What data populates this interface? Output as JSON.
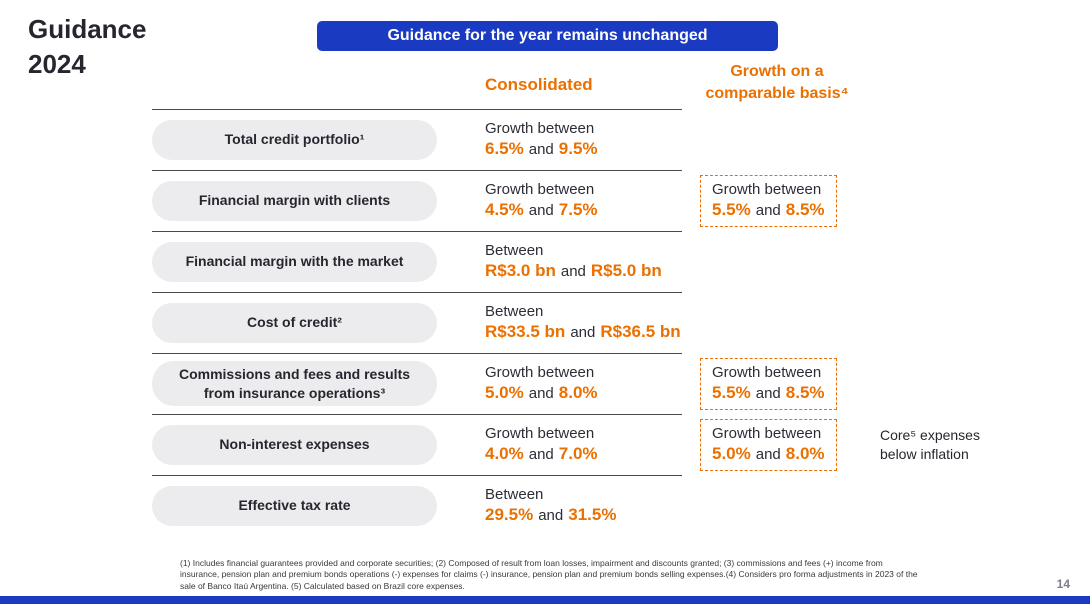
{
  "slide": {
    "title_line1": "Guidance",
    "title_line2": "2024",
    "banner": "Guidance for the year remains unchanged",
    "page_number": "14"
  },
  "colors": {
    "accent_orange": "#EC7000",
    "banner_blue": "#1A3BC1",
    "pill_gray": "#ECECEF"
  },
  "columns": {
    "consolidated": "Consolidated",
    "comparable_line1": "Growth on a",
    "comparable_line2": "comparable basis⁴"
  },
  "rows": [
    {
      "label": "Total credit portfolio¹",
      "cons_line1": "Growth between",
      "cons_v1": "6.5%",
      "cons_and": "and",
      "cons_v2": "9.5%"
    },
    {
      "label": "Financial margin with clients",
      "cons_line1": "Growth between",
      "cons_v1": "4.5%",
      "cons_and": "and",
      "cons_v2": "7.5%",
      "comp_line1": "Growth between",
      "comp_v1": "5.5%",
      "comp_and": "and",
      "comp_v2": "8.5%"
    },
    {
      "label": "Financial margin with the market",
      "cons_line1": "Between",
      "cons_v1": "R$3.0 bn",
      "cons_and": "and",
      "cons_v2": "R$5.0 bn"
    },
    {
      "label": "Cost of credit²",
      "cons_line1": "Between",
      "cons_v1": "R$33.5 bn",
      "cons_and": "and",
      "cons_v2": "R$36.5 bn"
    },
    {
      "label": "Commissions and fees and results from insurance operations³",
      "cons_line1": "Growth between",
      "cons_v1": "5.0%",
      "cons_and": "and",
      "cons_v2": "8.0%",
      "comp_line1": "Growth between",
      "comp_v1": "5.5%",
      "comp_and": "and",
      "comp_v2": "8.5%"
    },
    {
      "label": "Non-interest expenses",
      "cons_line1": "Growth between",
      "cons_v1": "4.0%",
      "cons_and": "and",
      "cons_v2": "7.0%",
      "comp_line1": "Growth between",
      "comp_v1": "5.0%",
      "comp_and": "and",
      "comp_v2": "8.0%",
      "note_line1": "Core⁵ expenses",
      "note_line2": "below inflation"
    },
    {
      "label": "Effective tax rate",
      "cons_line1": "Between",
      "cons_v1": "29.5%",
      "cons_and": "and",
      "cons_v2": "31.5%"
    }
  ],
  "footnote": "(1) Includes financial guarantees provided and corporate securities; (2) Composed of result from loan losses, impairment and discounts granted; (3) commissions and fees (+) income from insurance, pension plan and premium bonds operations (-) expenses for claims (-) insurance, pension plan and premium bonds selling expenses.(4) Considers pro forma adjustments in 2023 of the sale of Banco Itaú Argentina. (5) Calculated based on Brazil core expenses."
}
